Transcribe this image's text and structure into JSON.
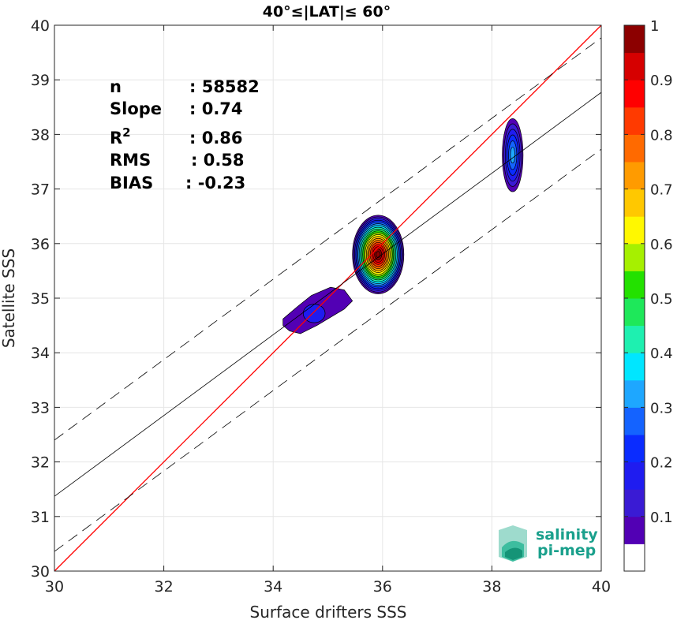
{
  "chart_data": {
    "type": "heatmap",
    "title": "40°≤|LAT|≤ 60°",
    "xlabel": "Surface drifters SSS",
    "ylabel": "Satellite SSS",
    "xlim": [
      30,
      40
    ],
    "ylim": [
      30,
      40
    ],
    "xticks": [
      "30",
      "32",
      "34",
      "36",
      "38",
      "40"
    ],
    "yticks": [
      "30",
      "31",
      "32",
      "33",
      "34",
      "35",
      "36",
      "37",
      "38",
      "39",
      "40"
    ],
    "grid": true,
    "stats": [
      {
        "key": "n",
        "value": ": 58582"
      },
      {
        "key": "Slope",
        "value": ": 0.74"
      },
      {
        "key": "R",
        "sup": "2",
        "value": ": 0.86"
      },
      {
        "key": "RMS",
        "value": ": 0.58"
      },
      {
        "key": "BIAS",
        "value": ": -0.23"
      }
    ],
    "lines": [
      {
        "name": "one-to-one",
        "color": "#ff0000",
        "dash": "",
        "points": [
          [
            30,
            30
          ],
          [
            40,
            40
          ]
        ]
      },
      {
        "name": "regression",
        "color": "#000000",
        "dash": "",
        "points": [
          [
            30,
            31.37
          ],
          [
            40,
            38.77
          ]
        ]
      },
      {
        "name": "upper-bound",
        "color": "#000000",
        "dash": "14,8",
        "points": [
          [
            30,
            32.4
          ],
          [
            40,
            39.77
          ]
        ]
      },
      {
        "name": "lower-bound",
        "color": "#000000",
        "dash": "14,8",
        "points": [
          [
            30,
            30.36
          ],
          [
            40,
            37.73
          ]
        ]
      }
    ],
    "density_blobs": [
      {
        "cx": 35.92,
        "cy": 35.8,
        "rx": 0.47,
        "ry": 0.72,
        "peak": 1.0,
        "shape": "ellipse"
      },
      {
        "cx": 38.38,
        "cy": 37.62,
        "rx": 0.19,
        "ry": 0.67,
        "peak": 0.3,
        "shape": "ellipse"
      },
      {
        "cx": 34.9,
        "cy": 34.75,
        "peak": 0.25,
        "shape": "polygon",
        "outline": [
          [
            34.18,
            34.62
          ],
          [
            34.45,
            34.85
          ],
          [
            34.7,
            35.05
          ],
          [
            35.05,
            35.2
          ],
          [
            35.3,
            35.15
          ],
          [
            35.45,
            34.95
          ],
          [
            35.3,
            34.8
          ],
          [
            35.05,
            34.65
          ],
          [
            34.8,
            34.5
          ],
          [
            34.5,
            34.35
          ],
          [
            34.3,
            34.4
          ],
          [
            34.18,
            34.5
          ]
        ],
        "inner": {
          "cx": 34.75,
          "cy": 34.72,
          "rx": 0.2,
          "ry": 0.17
        }
      }
    ],
    "colorbar": {
      "ticks": [
        "0.1",
        "0.2",
        "0.3",
        "0.4",
        "0.5",
        "0.6",
        "0.7",
        "0.8",
        "0.9",
        "1"
      ],
      "colors": [
        "#ffffff",
        "#5200b4",
        "#3a1bd4",
        "#1f1cf0",
        "#0a2cff",
        "#1463ff",
        "#1ea7ff",
        "#00e6ff",
        "#1ef0b0",
        "#1ee85a",
        "#23e100",
        "#a6f000",
        "#fff800",
        "#ffc800",
        "#ff9b00",
        "#ff6a00",
        "#ff3a00",
        "#ff0000",
        "#d60000",
        "#8c0000"
      ]
    }
  },
  "branding": {
    "line1": "salinity",
    "line2": "pi-mep"
  }
}
